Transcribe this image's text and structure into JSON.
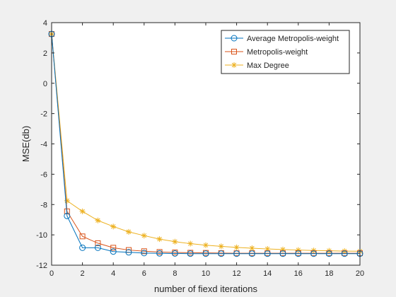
{
  "chart_data": {
    "type": "line",
    "title": "",
    "xlabel": "number of fiexd iterations",
    "ylabel": "MSE(db)",
    "xlim": [
      0,
      20
    ],
    "ylim": [
      -12,
      4
    ],
    "xticks": [
      0,
      2,
      4,
      6,
      8,
      10,
      12,
      14,
      16,
      18,
      20
    ],
    "yticks": [
      4,
      2,
      0,
      -2,
      -4,
      -6,
      -8,
      -10,
      -12
    ],
    "grid": false,
    "legend_position": "top-right",
    "x": [
      0,
      1,
      2,
      3,
      4,
      5,
      6,
      7,
      8,
      9,
      10,
      11,
      12,
      13,
      14,
      15,
      16,
      17,
      18,
      19,
      20
    ],
    "series": [
      {
        "name": "Average Metropolis-weight",
        "color": "#0072bd",
        "marker": "circle",
        "values": [
          3.25,
          -8.75,
          -10.85,
          -10.85,
          -11.1,
          -11.15,
          -11.2,
          -11.22,
          -11.23,
          -11.24,
          -11.24,
          -11.24,
          -11.24,
          -11.24,
          -11.24,
          -11.24,
          -11.24,
          -11.24,
          -11.24,
          -11.24,
          -11.24
        ]
      },
      {
        "name": "Metropolis-weight",
        "color": "#d95319",
        "marker": "square",
        "values": [
          3.25,
          -8.45,
          -10.1,
          -10.55,
          -10.85,
          -11.0,
          -11.08,
          -11.13,
          -11.16,
          -11.18,
          -11.19,
          -11.2,
          -11.21,
          -11.21,
          -11.21,
          -11.21,
          -11.21,
          -11.21,
          -11.21,
          -11.21,
          -11.21
        ]
      },
      {
        "name": "Max Degree",
        "color": "#edb120",
        "marker": "asterisk",
        "values": [
          3.25,
          -7.75,
          -8.45,
          -9.05,
          -9.45,
          -9.8,
          -10.05,
          -10.28,
          -10.45,
          -10.58,
          -10.68,
          -10.76,
          -10.83,
          -10.88,
          -10.93,
          -10.97,
          -11.0,
          -11.03,
          -11.05,
          -11.07,
          -11.08
        ]
      }
    ]
  }
}
